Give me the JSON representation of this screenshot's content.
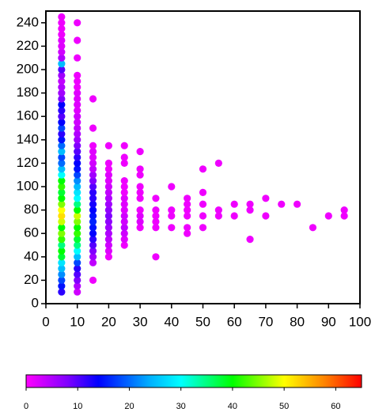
{
  "chart_data": {
    "type": "scatter",
    "xlim": [
      0,
      100
    ],
    "xticks": [
      0,
      10,
      20,
      30,
      40,
      50,
      60,
      70,
      80,
      90,
      100
    ],
    "ylim": [
      0,
      250
    ],
    "yticks": [
      0,
      20,
      40,
      60,
      80,
      100,
      120,
      140,
      160,
      180,
      200,
      220,
      240
    ],
    "clim": [
      0,
      65
    ],
    "cticks": [
      0,
      10,
      20,
      30,
      40,
      50,
      60
    ],
    "colormap": [
      [
        0,
        "#ff00ff"
      ],
      [
        8,
        "#8000ff"
      ],
      [
        14,
        "#0000ff"
      ],
      [
        24,
        "#00b0ff"
      ],
      [
        30,
        "#00ffff"
      ],
      [
        40,
        "#00ff00"
      ],
      [
        50,
        "#ffff00"
      ],
      [
        58,
        "#ff8000"
      ],
      [
        65,
        "#ff0000"
      ]
    ],
    "columns": [
      {
        "x": 5,
        "y": [
          10,
          15,
          20,
          25,
          30,
          35,
          40,
          45,
          50,
          55,
          60,
          65,
          70,
          75,
          80,
          85,
          90,
          95,
          100,
          105,
          110,
          115,
          120,
          125,
          130,
          135,
          140,
          145,
          150,
          155,
          160,
          165,
          170,
          175,
          180,
          185,
          190,
          195,
          200,
          205,
          210,
          215,
          220,
          225,
          230,
          235,
          240,
          245
        ],
        "counts": [
          12,
          15,
          18,
          22,
          25,
          28,
          38,
          40,
          35,
          42,
          45,
          40,
          48,
          52,
          50,
          45,
          40,
          38,
          42,
          40,
          30,
          25,
          20,
          18,
          25,
          20,
          15,
          12,
          18,
          14,
          10,
          12,
          14,
          8,
          6,
          5,
          4,
          6,
          10,
          25,
          5,
          3,
          2,
          2,
          1,
          1,
          1,
          1
        ]
      },
      {
        "x": 10,
        "y": [
          10,
          15,
          20,
          25,
          30,
          35,
          40,
          45,
          50,
          55,
          60,
          65,
          70,
          75,
          80,
          85,
          90,
          95,
          100,
          105,
          110,
          115,
          120,
          125,
          130,
          135,
          140,
          145,
          150,
          155,
          160,
          165,
          170,
          175,
          180,
          185,
          190,
          195,
          210,
          225,
          240
        ],
        "counts": [
          3,
          5,
          8,
          10,
          12,
          18,
          25,
          30,
          35,
          38,
          42,
          40,
          45,
          48,
          40,
          35,
          30,
          28,
          25,
          22,
          18,
          15,
          14,
          12,
          10,
          8,
          6,
          5,
          4,
          3,
          3,
          2,
          2,
          2,
          2,
          1,
          1,
          1,
          1,
          1,
          1
        ]
      },
      {
        "x": 15,
        "y": [
          20,
          35,
          40,
          45,
          50,
          55,
          60,
          65,
          70,
          75,
          80,
          85,
          90,
          95,
          100,
          105,
          110,
          115,
          120,
          125,
          130,
          135,
          150,
          175
        ],
        "counts": [
          1,
          4,
          6,
          8,
          10,
          12,
          14,
          15,
          16,
          15,
          14,
          13,
          12,
          12,
          10,
          8,
          6,
          4,
          3,
          2,
          2,
          1,
          1,
          1
        ]
      },
      {
        "x": 20,
        "y": [
          40,
          45,
          50,
          55,
          60,
          65,
          70,
          75,
          80,
          85,
          90,
          95,
          100,
          105,
          110,
          115,
          120,
          135
        ],
        "counts": [
          1,
          2,
          3,
          4,
          5,
          6,
          7,
          8,
          7,
          6,
          5,
          4,
          3,
          2,
          2,
          1,
          1,
          1
        ]
      },
      {
        "x": 25,
        "y": [
          50,
          55,
          60,
          65,
          70,
          75,
          80,
          85,
          90,
          95,
          100,
          105,
          120,
          125,
          135
        ],
        "counts": [
          1,
          2,
          3,
          4,
          3,
          3,
          2,
          2,
          2,
          1,
          1,
          1,
          1,
          1,
          1
        ]
      },
      {
        "x": 30,
        "y": [
          65,
          70,
          75,
          80,
          90,
          95,
          100,
          110,
          115,
          130
        ],
        "counts": [
          1,
          2,
          2,
          1,
          1,
          1,
          1,
          1,
          1,
          1
        ]
      },
      {
        "x": 35,
        "y": [
          40,
          65,
          70,
          75,
          80,
          90
        ],
        "counts": [
          1,
          1,
          1,
          1,
          1,
          1
        ]
      },
      {
        "x": 40,
        "y": [
          65,
          75,
          80,
          100
        ],
        "counts": [
          1,
          1,
          1,
          1
        ]
      },
      {
        "x": 45,
        "y": [
          60,
          65,
          75,
          80,
          85,
          90
        ],
        "counts": [
          1,
          1,
          1,
          1,
          1,
          1
        ]
      },
      {
        "x": 50,
        "y": [
          65,
          75,
          85,
          95,
          115
        ],
        "counts": [
          1,
          1,
          1,
          1,
          1
        ]
      },
      {
        "x": 55,
        "y": [
          75,
          80,
          120
        ],
        "counts": [
          1,
          1,
          1
        ]
      },
      {
        "x": 60,
        "y": [
          75,
          85
        ],
        "counts": [
          1,
          1
        ]
      },
      {
        "x": 65,
        "y": [
          55,
          80,
          85
        ],
        "counts": [
          1,
          1,
          1
        ]
      },
      {
        "x": 70,
        "y": [
          75,
          90
        ],
        "counts": [
          1,
          1
        ]
      },
      {
        "x": 75,
        "y": [
          85
        ],
        "counts": [
          1
        ]
      },
      {
        "x": 80,
        "y": [
          85
        ],
        "counts": [
          1
        ]
      },
      {
        "x": 85,
        "y": [
          65
        ],
        "counts": [
          1
        ]
      },
      {
        "x": 90,
        "y": [
          75
        ],
        "counts": [
          1
        ]
      },
      {
        "x": 95,
        "y": [
          75,
          80
        ],
        "counts": [
          1,
          1
        ]
      }
    ]
  }
}
